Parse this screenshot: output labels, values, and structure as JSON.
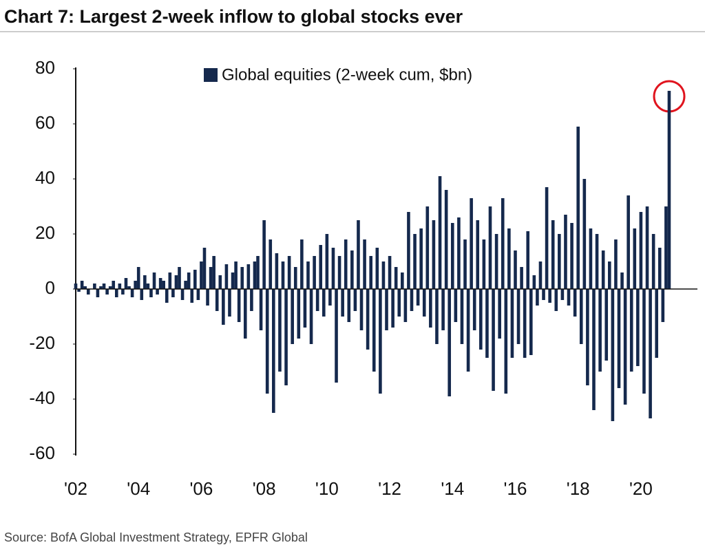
{
  "chart_data": {
    "type": "bar",
    "title": "Chart 7: Largest 2-week inflow to global stocks ever",
    "source": "Source: BofA Global Investment Strategy, EPFR Global",
    "xlim": [
      2002,
      2021.8
    ],
    "xticks": [
      {
        "value": 2002,
        "label": "'02"
      },
      {
        "value": 2004,
        "label": "'04"
      },
      {
        "value": 2006,
        "label": "'06"
      },
      {
        "value": 2008,
        "label": "'08"
      },
      {
        "value": 2010,
        "label": "'10"
      },
      {
        "value": 2012,
        "label": "'12"
      },
      {
        "value": 2014,
        "label": "'14"
      },
      {
        "value": 2016,
        "label": "'16"
      },
      {
        "value": 2018,
        "label": "'18"
      },
      {
        "value": 2020,
        "label": "'20"
      }
    ],
    "ylim": [
      -60,
      80
    ],
    "yticks": [
      -60,
      -40,
      -20,
      0,
      20,
      40,
      60,
      80
    ],
    "x": [
      2002,
      2002.1,
      2002.2,
      2002.3,
      2002.4,
      2002.5,
      2002.6,
      2002.7,
      2002.8,
      2002.9,
      2003,
      2003.1,
      2003.2,
      2003.3,
      2003.4,
      2003.5,
      2003.6,
      2003.7,
      2003.8,
      2003.9,
      2004,
      2004.1,
      2004.2,
      2004.3,
      2004.4,
      2004.5,
      2004.6,
      2004.7,
      2004.8,
      2004.9,
      2005,
      2005.1,
      2005.2,
      2005.3,
      2005.4,
      2005.5,
      2005.6,
      2005.7,
      2005.8,
      2005.9,
      2006,
      2006.1,
      2006.2,
      2006.3,
      2006.4,
      2006.5,
      2006.6,
      2006.7,
      2006.8,
      2006.9,
      2007,
      2007.1,
      2007.2,
      2007.3,
      2007.4,
      2007.5,
      2007.6,
      2007.7,
      2007.8,
      2007.9,
      2008,
      2008.1,
      2008.2,
      2008.3,
      2008.4,
      2008.5,
      2008.6,
      2008.7,
      2008.8,
      2008.9,
      2009,
      2009.1,
      2009.2,
      2009.3,
      2009.4,
      2009.5,
      2009.6,
      2009.7,
      2009.8,
      2009.9,
      2010,
      2010.1,
      2010.2,
      2010.3,
      2010.4,
      2010.5,
      2010.6,
      2010.7,
      2010.8,
      2010.9,
      2011,
      2011.1,
      2011.2,
      2011.3,
      2011.4,
      2011.5,
      2011.6,
      2011.7,
      2011.8,
      2011.9,
      2012,
      2012.1,
      2012.2,
      2012.3,
      2012.4,
      2012.5,
      2012.6,
      2012.7,
      2012.8,
      2012.9,
      2013,
      2013.1,
      2013.2,
      2013.3,
      2013.4,
      2013.5,
      2013.6,
      2013.7,
      2013.8,
      2013.9,
      2014,
      2014.1,
      2014.2,
      2014.3,
      2014.4,
      2014.5,
      2014.6,
      2014.7,
      2014.8,
      2014.9,
      2015,
      2015.1,
      2015.2,
      2015.3,
      2015.4,
      2015.5,
      2015.6,
      2015.7,
      2015.8,
      2015.9,
      2016,
      2016.1,
      2016.2,
      2016.3,
      2016.4,
      2016.5,
      2016.6,
      2016.7,
      2016.8,
      2016.9,
      2017,
      2017.1,
      2017.2,
      2017.3,
      2017.4,
      2017.5,
      2017.6,
      2017.7,
      2017.8,
      2017.9,
      2018,
      2018.1,
      2018.2,
      2018.3,
      2018.4,
      2018.5,
      2018.6,
      2018.7,
      2018.8,
      2018.9,
      2019,
      2019.1,
      2019.2,
      2019.3,
      2019.4,
      2019.5,
      2019.6,
      2019.7,
      2019.8,
      2019.9,
      2020,
      2020.1,
      2020.2,
      2020.3,
      2020.4,
      2020.5,
      2020.6,
      2020.7,
      2020.8,
      2020.9
    ],
    "series": [
      {
        "name": "Global equities (2-week cum, $bn)",
        "color": "#15294d",
        "values": [
          2,
          -1,
          3,
          1,
          -2,
          0,
          2,
          -3,
          1,
          2,
          -2,
          1,
          3,
          -3,
          2,
          -2,
          4,
          1,
          -3,
          3,
          8,
          -4,
          5,
          2,
          -3,
          6,
          -2,
          4,
          3,
          -5,
          6,
          -3,
          5,
          8,
          -4,
          3,
          6,
          -5,
          7,
          -4,
          10,
          15,
          -6,
          8,
          12,
          -8,
          5,
          -13,
          9,
          -10,
          6,
          10,
          -12,
          8,
          -18,
          9,
          -8,
          10,
          12,
          -15,
          25,
          -38,
          18,
          -45,
          13,
          -30,
          10,
          -35,
          12,
          -20,
          8,
          -18,
          18,
          -14,
          10,
          -20,
          12,
          -8,
          16,
          -10,
          20,
          -6,
          15,
          -34,
          12,
          -10,
          18,
          -12,
          14,
          -8,
          25,
          -15,
          18,
          -22,
          12,
          -30,
          15,
          -38,
          10,
          -15,
          12,
          -14,
          8,
          -10,
          6,
          -12,
          28,
          -8,
          20,
          -6,
          22,
          -10,
          30,
          -14,
          25,
          -20,
          41,
          -15,
          36,
          -39,
          24,
          -12,
          26,
          -20,
          18,
          -30,
          33,
          -15,
          25,
          -22,
          18,
          -25,
          30,
          -37,
          20,
          -18,
          33,
          -38,
          22,
          -25,
          14,
          -20,
          8,
          -25,
          21,
          -24,
          5,
          -6,
          10,
          -4,
          37,
          -5,
          25,
          -8,
          20,
          -4,
          27,
          -6,
          24,
          -10,
          59,
          -20,
          40,
          -35,
          22,
          -44,
          20,
          -30,
          14,
          -26,
          10,
          -48,
          18,
          -36,
          6,
          -42,
          34,
          -30,
          22,
          -28,
          28,
          -38,
          30,
          -47,
          20,
          -25,
          15,
          -12,
          30,
          72
        ]
      }
    ]
  }
}
